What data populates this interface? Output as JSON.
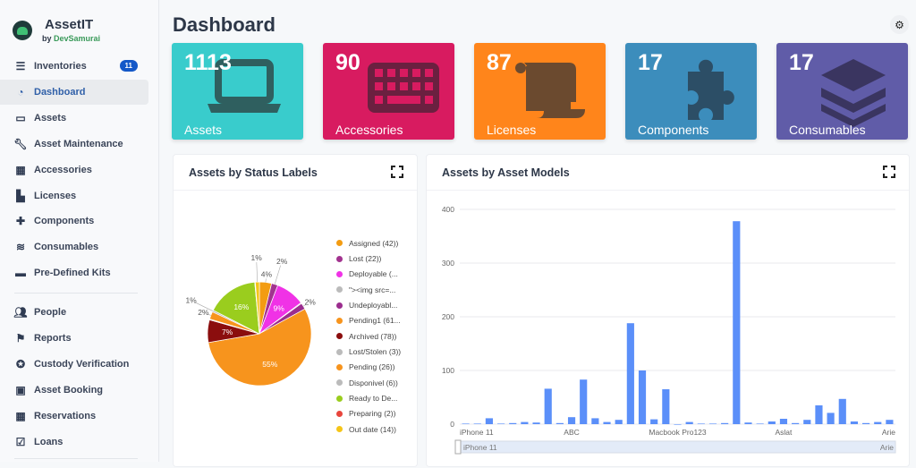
{
  "app": {
    "name": "AssetIT",
    "by": "by",
    "company": "DevSamurai"
  },
  "sidebar": {
    "items": [
      {
        "label": "Inventories",
        "icon": "sliders-icon",
        "badge": "11"
      },
      {
        "label": "Dashboard",
        "icon": "gauge-icon",
        "active": true
      },
      {
        "label": "Assets",
        "icon": "laptop-icon"
      },
      {
        "label": "Asset Maintenance",
        "icon": "wrench-icon"
      },
      {
        "label": "Accessories",
        "icon": "keyboard-icon"
      },
      {
        "label": "Licenses",
        "icon": "scroll-icon"
      },
      {
        "label": "Components",
        "icon": "puzzle-icon"
      },
      {
        "label": "Consumables",
        "icon": "layers-icon"
      },
      {
        "label": "Pre-Defined Kits",
        "icon": "toolbox-icon"
      },
      {
        "label": "People",
        "icon": "users-icon"
      },
      {
        "label": "Reports",
        "icon": "flag-icon"
      },
      {
        "label": "Custody Verification",
        "icon": "badge-check-icon"
      },
      {
        "label": "Asset Booking",
        "icon": "ticket-icon"
      },
      {
        "label": "Reservations",
        "icon": "calendar-icon"
      },
      {
        "label": "Loans",
        "icon": "calendar-check-icon"
      }
    ]
  },
  "page": {
    "title": "Dashboard"
  },
  "cards": [
    {
      "value": "1113",
      "label": "Assets",
      "color": "#39cccc",
      "icon": "laptop-icon"
    },
    {
      "value": "90",
      "label": "Accessories",
      "color": "#d81b60",
      "icon": "keyboard-icon"
    },
    {
      "value": "87",
      "label": "Licenses",
      "color": "#ff851b",
      "icon": "scroll-icon"
    },
    {
      "value": "17",
      "label": "Components",
      "color": "#3c8dbc",
      "icon": "puzzle-icon"
    },
    {
      "value": "17",
      "label": "Consumables",
      "color": "#605ca8",
      "icon": "layers-icon"
    }
  ],
  "chart_data": [
    {
      "type": "pie",
      "title": "Assets by Status Labels",
      "legend": "right",
      "slices": [
        {
          "label": "Assigned (42))",
          "value": 42,
          "color": "#f39c12"
        },
        {
          "label": "Lost (22))",
          "value": 22,
          "color": "#a2338f"
        },
        {
          "label": "Deployable (...",
          "value": 100,
          "color": "#f032e6"
        },
        {
          "label": "\"><img src=...",
          "value": 3,
          "color": "#bbbbbb"
        },
        {
          "label": "Undeployabl...",
          "value": 22,
          "color": "#9b2d8e"
        },
        {
          "label": "Pending1 (61...",
          "value": 612,
          "color": "#f7941d"
        },
        {
          "label": "Archived (78))",
          "value": 78,
          "color": "#8b0e0e"
        },
        {
          "label": "Lost/Stolen (3))",
          "value": 3,
          "color": "#bbbbbb"
        },
        {
          "label": "Pending (26))",
          "value": 26,
          "color": "#f7941d"
        },
        {
          "label": "Disponivel (6))",
          "value": 6,
          "color": "#bbbbbb"
        },
        {
          "label": "Ready to De...",
          "value": 178,
          "color": "#9acd1e"
        },
        {
          "label": "Preparing (2))",
          "value": 2,
          "color": "#e8453c"
        },
        {
          "label": "Out date (14))",
          "value": 14,
          "color": "#f5c518"
        }
      ]
    },
    {
      "type": "bar",
      "title": "Assets by Asset Models",
      "ylim": [
        0,
        400
      ],
      "yticks": [
        0,
        100,
        200,
        300,
        400
      ],
      "grid": true,
      "color": "#5b8ff9",
      "tick_labels": [
        {
          "index": 0,
          "label": "iPhone 11"
        },
        {
          "index": 9,
          "label": "ABC"
        },
        {
          "index": 18,
          "label": "Macbook Pro123"
        },
        {
          "index": 27,
          "label": "Aslat"
        },
        {
          "index": 36,
          "label": "Arie"
        }
      ],
      "values": [
        1,
        1,
        11,
        1,
        2,
        4,
        3,
        66,
        2,
        13,
        83,
        11,
        4,
        8,
        188,
        100,
        9,
        65,
        0,
        4,
        1,
        1,
        2,
        378,
        3,
        1,
        5,
        10,
        2,
        8,
        35,
        21,
        47,
        5,
        2,
        4,
        8
      ],
      "zoom_slider": {
        "start_label": "iPhone 11",
        "end_label": "Arie"
      }
    }
  ]
}
